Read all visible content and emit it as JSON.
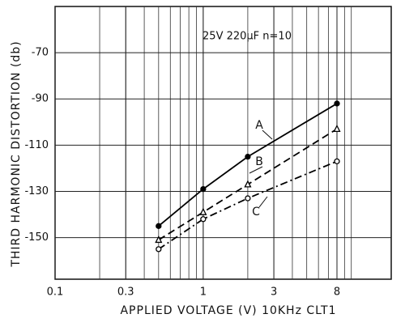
{
  "chart_data": {
    "type": "line",
    "annotation": "25V 220µF n=10",
    "xlabel": "APPLIED VOLTAGE (V)  10KHz  CLT1",
    "ylabel": "THIRD HARMONIC DISTORTION (db)",
    "xscale": "log",
    "xlim": [
      0.1,
      18.6
    ],
    "xticks": [
      0.1,
      0.3,
      1,
      3,
      8
    ],
    "ylim": [
      -168,
      -50
    ],
    "yticks": [
      -70,
      -90,
      -110,
      -130,
      -150
    ],
    "grid": true,
    "x": [
      0.5,
      1,
      2,
      8
    ],
    "series": [
      {
        "name": "A",
        "color": "#000000",
        "style": "solid",
        "marker": "dot",
        "values": [
          -145,
          -129,
          -115,
          -92
        ]
      },
      {
        "name": "B",
        "color": "#000000",
        "style": "dashed",
        "marker": "triangle",
        "values": [
          -151,
          -139,
          -127,
          -103
        ]
      },
      {
        "name": "C",
        "color": "#000000",
        "style": "dashdot",
        "marker": "circle",
        "values": [
          -155,
          -142,
          -133,
          -117
        ]
      }
    ]
  }
}
